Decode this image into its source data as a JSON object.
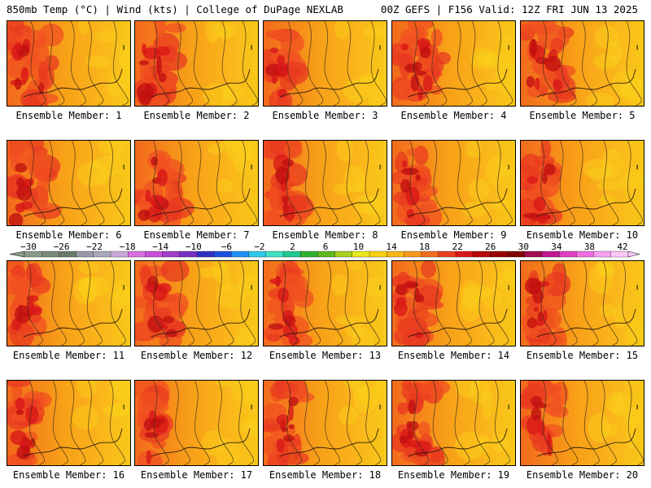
{
  "header": {
    "left": "850mb Temp (°C) | Wind (kts) | College of DuPage NEXLAB",
    "right": "00Z GEFS | F156 Valid: 12Z FRI JUN 13 2025"
  },
  "label_prefix": "Ensemble Member: ",
  "members": [
    {
      "label": "Ensemble Member: 1",
      "hot": 0.75
    },
    {
      "label": "Ensemble Member: 2",
      "hot": 0.7
    },
    {
      "label": "Ensemble Member: 3",
      "hot": 0.55
    },
    {
      "label": "Ensemble Member: 4",
      "hot": 0.85
    },
    {
      "label": "Ensemble Member: 5",
      "hot": 0.8
    },
    {
      "label": "Ensemble Member: 6",
      "hot": 0.65
    },
    {
      "label": "Ensemble Member: 7",
      "hot": 0.7
    },
    {
      "label": "Ensemble Member: 8",
      "hot": 0.55
    },
    {
      "label": "Ensemble Member: 9",
      "hot": 0.55
    },
    {
      "label": "Ensemble Member: 10",
      "hot": 0.6
    },
    {
      "label": "Ensemble Member: 11",
      "hot": 0.6
    },
    {
      "label": "Ensemble Member: 12",
      "hot": 0.8
    },
    {
      "label": "Ensemble Member: 13",
      "hot": 0.65
    },
    {
      "label": "Ensemble Member: 14",
      "hot": 0.6
    },
    {
      "label": "Ensemble Member: 15",
      "hot": 0.7
    },
    {
      "label": "Ensemble Member: 16",
      "hot": 0.6
    },
    {
      "label": "Ensemble Member: 17",
      "hot": 0.5
    },
    {
      "label": "Ensemble Member: 18",
      "hot": 0.65
    },
    {
      "label": "Ensemble Member: 19",
      "hot": 0.7
    },
    {
      "label": "Ensemble Member: 20",
      "hot": 0.65
    }
  ],
  "colorbar": {
    "ticks": [
      "−30",
      "−26",
      "−22",
      "−18",
      "−14",
      "−10",
      "−6",
      "−2",
      "2",
      "6",
      "10",
      "14",
      "18",
      "22",
      "26",
      "30",
      "34",
      "38",
      "42"
    ],
    "colors": [
      "#8a9a8a",
      "#7a8a7a",
      "#6b7b6b",
      "#9898a8",
      "#a8a8b8",
      "#c8a8d8",
      "#d870e0",
      "#c850d8",
      "#a040c8",
      "#7830c0",
      "#3030c0",
      "#2050e0",
      "#2090f0",
      "#30c8e8",
      "#40e0c0",
      "#20c890",
      "#30b030",
      "#60b820",
      "#a8d020",
      "#e8e820",
      "#f8d010",
      "#f8b818",
      "#f89820",
      "#f07020",
      "#e84020",
      "#d81818",
      "#b80808",
      "#980000",
      "#800000",
      "#a01050",
      "#c01890",
      "#e040c0",
      "#f070e0",
      "#f8a0f0",
      "#fcc8f8"
    ]
  }
}
